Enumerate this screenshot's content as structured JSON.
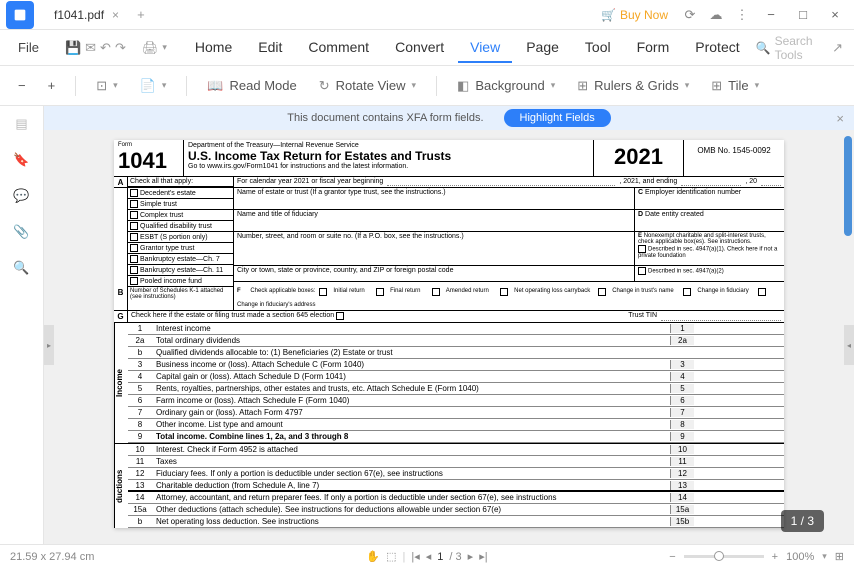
{
  "titlebar": {
    "filename": "f1041.pdf",
    "buy_now": "Buy Now"
  },
  "menubar": {
    "file": "File",
    "items": [
      "Home",
      "Edit",
      "Comment",
      "Convert",
      "View",
      "Page",
      "Tool",
      "Form",
      "Protect"
    ],
    "active_index": 4,
    "search_placeholder": "Search Tools"
  },
  "toolbar": {
    "read_mode": "Read Mode",
    "rotate_view": "Rotate View",
    "background": "Background",
    "rulers_grids": "Rulers & Grids",
    "tile": "Tile"
  },
  "banner": {
    "text": "This document contains XFA form fields.",
    "button": "Highlight Fields"
  },
  "form": {
    "form_label": "Form",
    "number": "1041",
    "dept": "Department of the Treasury—Internal Revenue Service",
    "title": "U.S. Income Tax Return for Estates and Trusts",
    "subtitle": "Go to www.irs.gov/Form1041 for instructions and the latest information.",
    "year": "2021",
    "omb": "OMB No. 1545-0092",
    "section_a": "A",
    "check_all": "Check all that apply:",
    "calendar_year": "For calendar year 2021 or fiscal year beginning",
    "year_ending": ", 2021, and ending",
    "year_20": ", 20",
    "checkboxes": [
      "Decedent's estate",
      "Simple trust",
      "Complex trust",
      "Qualified disability trust",
      "ESBT (S portion only)",
      "Grantor type trust",
      "Bankruptcy estate—Ch. 7",
      "Bankruptcy estate—Ch. 11",
      "Pooled income fund"
    ],
    "name_estate": "Name of estate or trust (If a grantor type trust, see the instructions.)",
    "c_label": "C",
    "ein": "Employer identification number",
    "fiduciary": "Name and title of fiduciary",
    "d_label": "D",
    "date_created": "Date entity created",
    "address": "Number, street, and room or suite no. (If a P.O. box, see the instructions.)",
    "e_label": "E",
    "nonexempt": "Nonexempt charitable and split-interest trusts, check applicable box(es). See instructions.",
    "described_1": "Described in sec. 4947(a)(1). Check here if not a private foundation",
    "city": "City or town, state or province, country, and ZIP or foreign postal code",
    "described_2": "Described in sec. 4947(a)(2)",
    "b_label": "B",
    "schedules_k1": "Number of Schedules K-1 attached (see instructions)",
    "f_label": "F",
    "check_app": "Check applicable boxes:",
    "initial": "Initial return",
    "final": "Final return",
    "amended": "Amended return",
    "net_loss": "Net operating loss carryback",
    "change_name": "Change in trust's name",
    "change_fid": "Change in fiduciary",
    "change_addr": "Change in fiduciary's address",
    "g_label": "G",
    "sec_645": "Check here if the estate or filing trust made a section 645 election",
    "trust_tin": "Trust TIN",
    "income_label": "Income",
    "deductions_label": "ductions",
    "lines": [
      {
        "no": "1",
        "text": "Interest income",
        "box": "1"
      },
      {
        "no": "2a",
        "text": "Total ordinary dividends",
        "box": "2a"
      },
      {
        "no": "b",
        "text": "Qualified dividends allocable to:          (1) Beneficiaries                              (2) Estate or trust",
        "box": ""
      },
      {
        "no": "3",
        "text": "Business income or (loss). Attach Schedule C (Form 1040)",
        "box": "3"
      },
      {
        "no": "4",
        "text": "Capital gain or (loss). Attach Schedule D (Form 1041)",
        "box": "4"
      },
      {
        "no": "5",
        "text": "Rents, royalties, partnerships, other estates and trusts, etc. Attach Schedule E (Form 1040)",
        "box": "5"
      },
      {
        "no": "6",
        "text": "Farm income or (loss). Attach Schedule F (Form 1040)",
        "box": "6"
      },
      {
        "no": "7",
        "text": "Ordinary gain or (loss). Attach Form 4797",
        "box": "7"
      },
      {
        "no": "8",
        "text": "Other income. List type and amount",
        "box": "8"
      },
      {
        "no": "9",
        "text": "Total income. Combine lines 1, 2a, and 3 through 8",
        "box": "9"
      }
    ],
    "deduction_lines": [
      {
        "no": "10",
        "text": "Interest. Check if Form 4952 is attached",
        "box": "10"
      },
      {
        "no": "11",
        "text": "Taxes",
        "box": "11"
      },
      {
        "no": "12",
        "text": "Fiduciary fees. If only a portion is deductible under section 67(e), see instructions",
        "box": "12"
      },
      {
        "no": "13",
        "text": "Charitable deduction (from Schedule A, line 7)",
        "box": "13"
      },
      {
        "no": "14",
        "text": "Attorney, accountant, and return preparer fees. If only a portion is deductible under section 67(e), see instructions",
        "box": "14"
      },
      {
        "no": "15a",
        "text": "Other deductions (attach schedule). See instructions for deductions allowable under section 67(e)",
        "box": "15a"
      },
      {
        "no": "b",
        "text": "Net operating loss deduction. See instructions",
        "box": "15b"
      }
    ]
  },
  "statusbar": {
    "dimensions": "21.59 x 27.94 cm",
    "page": "1",
    "total_pages": "/ 3",
    "zoom": "100%",
    "page_badge": "1 / 3"
  }
}
